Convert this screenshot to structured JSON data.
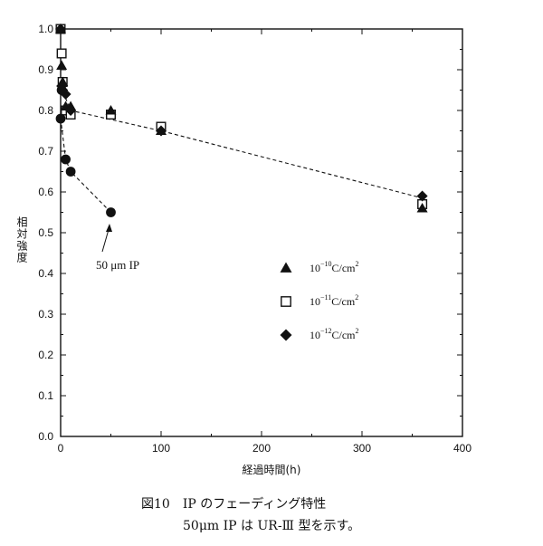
{
  "chart_data": {
    "type": "scatter",
    "xlabel": "経過時間(h)",
    "ylabel": "相対強度",
    "xlim": [
      0,
      400
    ],
    "ylim": [
      0.0,
      1.0
    ],
    "xticks": [
      0,
      100,
      200,
      300,
      400
    ],
    "yticks": [
      0.0,
      0.1,
      0.2,
      0.3,
      0.4,
      0.5,
      0.6,
      0.7,
      0.8,
      0.9,
      1.0
    ],
    "grid": false,
    "legend_position": "right",
    "series": [
      {
        "name": "10⁻¹⁰C/cm²",
        "legend_main": "10",
        "legend_exp": "−10",
        "legend_unit": "C/cm",
        "legend_unit_exp": "2",
        "marker": "triangle",
        "x": [
          0,
          1,
          2,
          5,
          10,
          50,
          100,
          360
        ],
        "y": [
          1.0,
          0.91,
          0.87,
          0.81,
          0.81,
          0.8,
          0.75,
          0.56
        ]
      },
      {
        "name": "10⁻¹¹C/cm²",
        "legend_main": "10",
        "legend_exp": "−11",
        "legend_unit": "C/cm",
        "legend_unit_exp": "2",
        "marker": "square-open",
        "x": [
          0,
          1,
          2,
          5,
          10,
          50,
          100,
          360
        ],
        "y": [
          1.0,
          0.94,
          0.87,
          0.8,
          0.79,
          0.79,
          0.76,
          0.57
        ]
      },
      {
        "name": "10⁻¹²C/cm²",
        "legend_main": "10",
        "legend_exp": "−12",
        "legend_unit": "C/cm",
        "legend_unit_exp": "2",
        "marker": "diamond",
        "x": [
          0,
          1,
          2,
          5,
          10,
          100,
          360
        ],
        "y": [
          1.0,
          0.86,
          0.85,
          0.84,
          0.8,
          0.75,
          0.59
        ]
      },
      {
        "name": "50μm IP",
        "marker": "circle",
        "x": [
          0,
          1,
          5,
          10,
          50
        ],
        "y": [
          0.78,
          0.85,
          0.68,
          0.65,
          0.55
        ]
      }
    ],
    "trend_lines": [
      {
        "x": [
          0,
          10,
          100,
          360
        ],
        "y": [
          0.86,
          0.8,
          0.75,
          0.585
        ]
      },
      {
        "x": [
          0,
          5,
          10,
          50
        ],
        "y": [
          0.78,
          0.68,
          0.65,
          0.55
        ]
      }
    ],
    "annotation": {
      "text": "50 μm IP",
      "target_x": 50,
      "target_y": 0.55
    }
  },
  "caption": {
    "line1": "図10　IP のフェーディング特性",
    "line2": "50μm IP は UR-Ⅲ 型を示す。"
  }
}
